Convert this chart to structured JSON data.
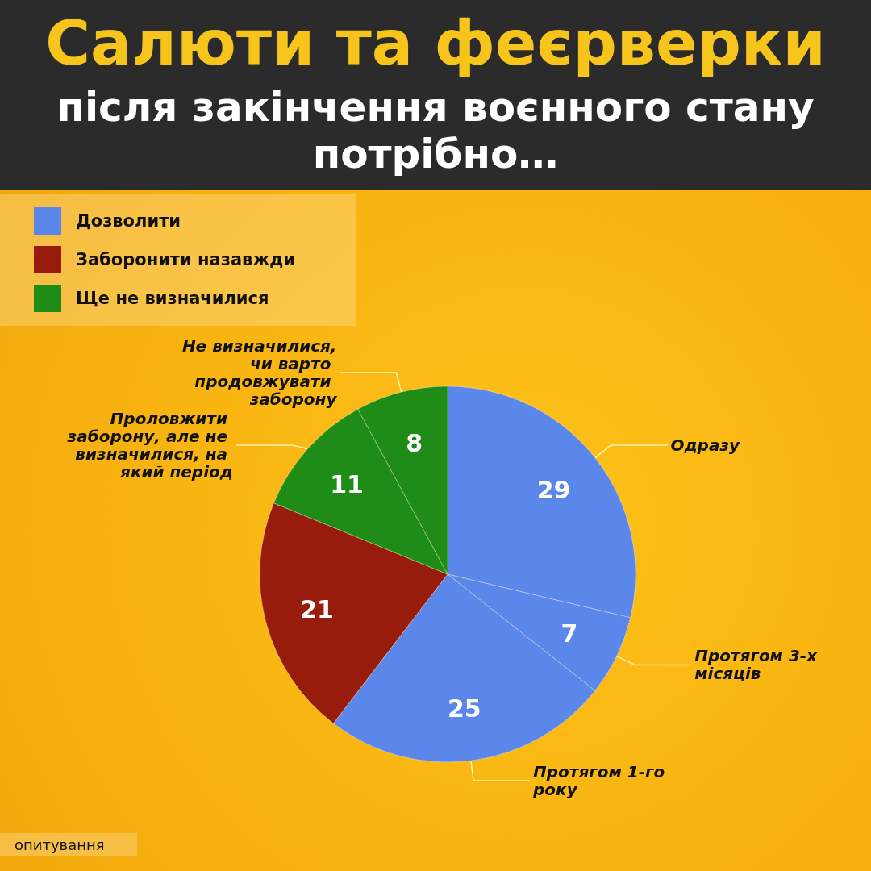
{
  "chart_data": {
    "type": "pie",
    "title": "Салюти та феєрверки",
    "subtitle": "після закінчення воєнного стану потрібно…",
    "categories": [
      "Одразу",
      "Протягом 3-х місяців",
      "Протягом 1-го року",
      null,
      "Проловжити заборону, але не визначилися, на який період",
      "Не визначилися,чи варто продовжувати заборону"
    ],
    "values": [
      29,
      7,
      25,
      21,
      11,
      8
    ],
    "colors": [
      "#5b87ea",
      "#5b87ea",
      "#5b87ea",
      "#981c0b",
      "#1f8c17",
      "#1f8c17"
    ],
    "data_labels": true,
    "annotations": [
      "Дозволити",
      "Заборонити назавжди",
      "Ще не визначилися",
      "опитування"
    ]
  }
}
